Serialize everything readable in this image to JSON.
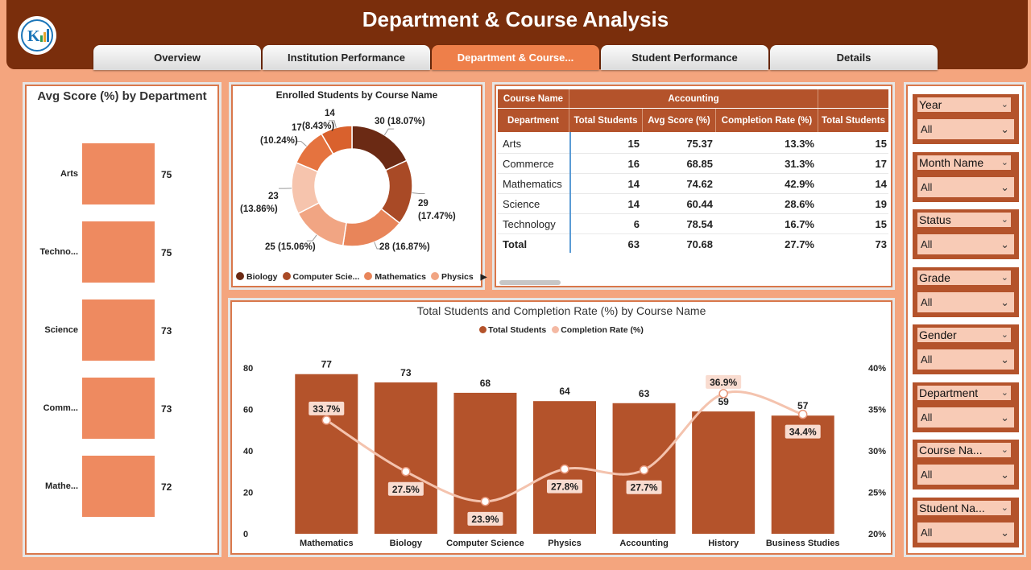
{
  "header": {
    "title": "Department & Course Analysis",
    "tabs": [
      "Overview",
      "Institution Performance",
      "Department & Course...",
      "Student Performance",
      "Details"
    ],
    "active_tab": 2
  },
  "colors": {
    "dark": "#7a2e0c",
    "bar": "#b4532b",
    "bar_light": "#ee8a60",
    "line": "#f4b9a3",
    "accent": "#ee7f4a"
  },
  "avg_score": {
    "title": "Avg Score (%) by Department",
    "chart_data": {
      "type": "bar",
      "categories": [
        "Arts",
        "Techno...",
        "Science",
        "Comm...",
        "Mathe..."
      ],
      "values": [
        75,
        75,
        73,
        73,
        72
      ]
    }
  },
  "donut": {
    "title": "Enrolled Students by Course Name",
    "chart_data": {
      "type": "pie",
      "slices": [
        {
          "value": 30,
          "pct": "18.07%",
          "color": "#6b2a14"
        },
        {
          "value": 29,
          "pct": "17.47%",
          "color": "#a94a26"
        },
        {
          "value": 28,
          "pct": "16.87%",
          "color": "#e8855a"
        },
        {
          "value": 25,
          "pct": "15.06%",
          "color": "#f1a583"
        },
        {
          "value": 23,
          "pct": "13.86%",
          "color": "#f6c4ad"
        },
        {
          "value": 17,
          "pct": "10.24%",
          "color": "#e5733f"
        },
        {
          "value": 14,
          "pct": "8.43%",
          "color": "#d9612d"
        }
      ],
      "labels": {
        "s1": "30 (18.07%)",
        "s2a": "29",
        "s2b": "(17.47%)",
        "s3": "28 (16.87%)",
        "s4": "25 (15.06%)",
        "s5a": "23",
        "s5b": "(13.86%)",
        "s6a": "17",
        "s6b": "(10.24%)",
        "s7a": "14",
        "s7b": "(8.43%)"
      },
      "legend": [
        {
          "name": "Biology",
          "color": "#6b2a14"
        },
        {
          "name": "Computer Scie...",
          "color": "#a94a26"
        },
        {
          "name": "Mathematics",
          "color": "#e8855a"
        },
        {
          "name": "Physics",
          "color": "#f1a583"
        }
      ]
    }
  },
  "table": {
    "col_course": "Course Name",
    "group": "Accounting",
    "headers": [
      "Department",
      "Total Students",
      "Avg Score (%)",
      "Completion Rate (%)",
      "Total Students"
    ],
    "rows": [
      [
        "Arts",
        "15",
        "75.37",
        "13.3%",
        "15"
      ],
      [
        "Commerce",
        "16",
        "68.85",
        "31.3%",
        "17"
      ],
      [
        "Mathematics",
        "14",
        "74.62",
        "42.9%",
        "14"
      ],
      [
        "Science",
        "14",
        "60.44",
        "28.6%",
        "19"
      ],
      [
        "Technology",
        "6",
        "78.54",
        "16.7%",
        "15"
      ],
      [
        "Total",
        "63",
        "70.68",
        "27.7%",
        "73"
      ]
    ]
  },
  "combo": {
    "title": "Total Students and Completion Rate (%) by Course Name",
    "chart_data": {
      "type": "bar",
      "categories": [
        "Mathematics",
        "Biology",
        "Computer Science",
        "Physics",
        "Accounting",
        "History",
        "Business Studies"
      ],
      "series": [
        {
          "name": "Total Students",
          "values": [
            77,
            73,
            68,
            64,
            63,
            59,
            57
          ]
        },
        {
          "name": "Completion Rate (%)",
          "values": [
            33.7,
            27.5,
            23.9,
            27.8,
            27.7,
            36.9,
            34.4
          ]
        }
      ],
      "y_left_ticks": [
        "80",
        "60",
        "40",
        "20",
        "0"
      ],
      "y_right_ticks": [
        "40%",
        "35%",
        "30%",
        "25%",
        "20%"
      ],
      "ylim_left": [
        0,
        80
      ],
      "ylim_right": [
        20,
        40
      ],
      "rate_labels": [
        "33.7%",
        "27.5%",
        "23.9%",
        "27.8%",
        "27.7%",
        "36.9%",
        "34.4%"
      ]
    }
  },
  "slicers": [
    {
      "label": "Year",
      "value": "All"
    },
    {
      "label": "Month Name",
      "value": "All"
    },
    {
      "label": "Status",
      "value": "All"
    },
    {
      "label": "Grade",
      "value": "All"
    },
    {
      "label": "Gender",
      "value": "All"
    },
    {
      "label": "Department",
      "value": "All"
    },
    {
      "label": "Course Na...",
      "value": "All"
    },
    {
      "label": "Student Na...",
      "value": "All"
    }
  ]
}
